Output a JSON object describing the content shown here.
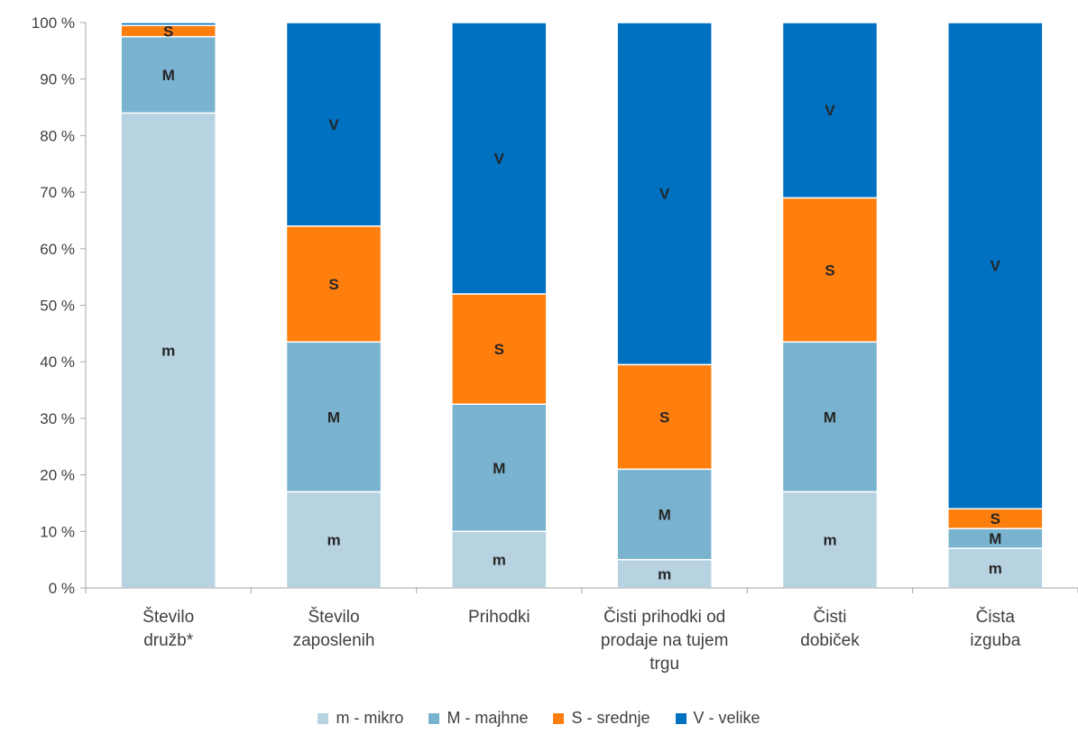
{
  "chart_data": {
    "type": "bar",
    "stacked": true,
    "percent": true,
    "categories": [
      [
        "Število",
        "družb*"
      ],
      [
        "Število",
        "zaposlenih"
      ],
      [
        "Prihodki"
      ],
      [
        "Čisti prihodki od",
        "prodaje na tujem",
        "trgu"
      ],
      [
        "Čisti",
        "dobiček"
      ],
      [
        "Čista",
        "izguba"
      ]
    ],
    "series": [
      {
        "name": "m - mikro",
        "label": "m",
        "color": "#b7d3e1",
        "values": [
          84,
          17,
          10,
          5,
          17,
          7
        ]
      },
      {
        "name": "M - majhne",
        "label": "M",
        "color": "#79b3cf",
        "values": [
          13.5,
          26.5,
          22.5,
          16,
          26.5,
          3.5
        ]
      },
      {
        "name": "S - srednje",
        "label": "S",
        "color": "#ff7f0e",
        "values": [
          2,
          20.5,
          19.5,
          18.5,
          25.5,
          3.5
        ]
      },
      {
        "name": "V - velike",
        "label": "V",
        "color": "#0070c0",
        "values": [
          0.5,
          36,
          48,
          60.5,
          31,
          86
        ]
      }
    ],
    "ylim": [
      0,
      100
    ],
    "yticks": [
      "0 %",
      "10 %",
      "20 %",
      "30 %",
      "40 %",
      "50 %",
      "60 %",
      "70 %",
      "80 %",
      "90 %",
      "100 %"
    ],
    "grid": false,
    "legend": "bottom"
  }
}
